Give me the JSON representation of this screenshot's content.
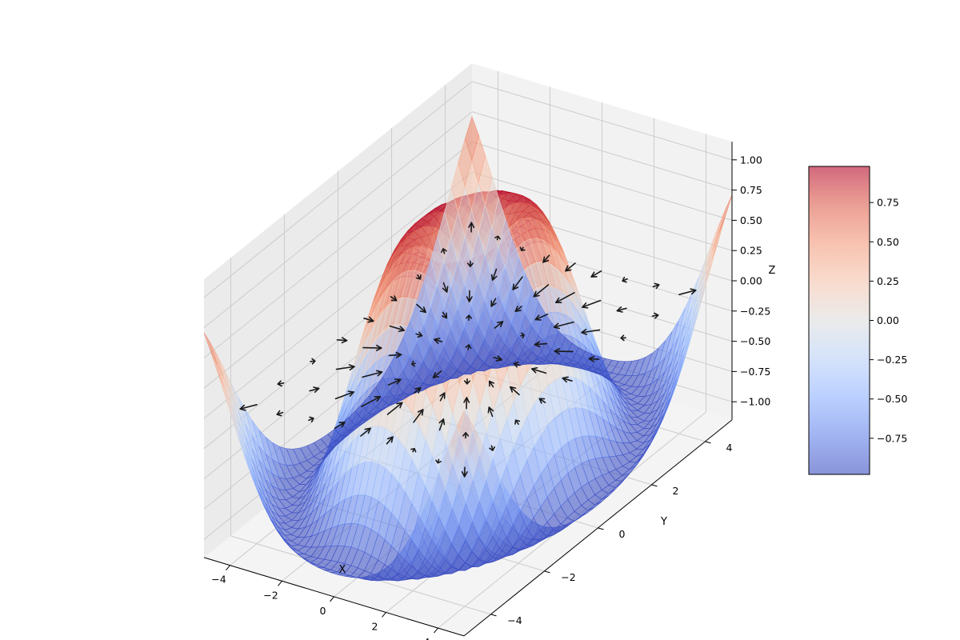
{
  "chart_data": {
    "type": "surface3d",
    "title": "",
    "function": "z = sin(sqrt(x^2 + y^2))",
    "x": {
      "label": "X",
      "range": [
        -5,
        5
      ],
      "ticks": [
        "−4",
        "−2",
        "0",
        "2",
        "4"
      ],
      "tick_values": [
        -4,
        -2,
        0,
        2,
        4
      ]
    },
    "y": {
      "label": "Y",
      "range": [
        -5,
        5
      ],
      "ticks": [
        "−4",
        "−2",
        "0",
        "2",
        "4"
      ],
      "tick_values": [
        -4,
        -2,
        0,
        2,
        4
      ]
    },
    "z": {
      "label": "Z",
      "range": [
        -1,
        1
      ],
      "ticks": [
        "−1.00",
        "−0.75",
        "−0.50",
        "−0.25",
        "0.00",
        "0.25",
        "0.50",
        "0.75",
        "1.00"
      ],
      "tick_values": [
        -1,
        -0.75,
        -0.5,
        -0.25,
        0,
        0.25,
        0.5,
        0.75,
        1
      ]
    },
    "surface": {
      "colormap": "coolwarm",
      "alpha": 0.6,
      "grid_samples": 40
    },
    "quiver": {
      "grid": [
        -4,
        -3,
        -2,
        -1,
        0,
        1,
        2,
        3,
        4
      ],
      "field": "gradient of z",
      "color": "#000000"
    },
    "colorbar": {
      "range": [
        -0.98,
        0.98
      ],
      "ticks": [
        "−0.75",
        "−0.50",
        "−0.25",
        "0.00",
        "0.25",
        "0.50",
        "0.75"
      ],
      "tick_values": [
        -0.75,
        -0.5,
        -0.25,
        0,
        0.25,
        0.5,
        0.75
      ],
      "placement": "right"
    },
    "grid": true
  }
}
